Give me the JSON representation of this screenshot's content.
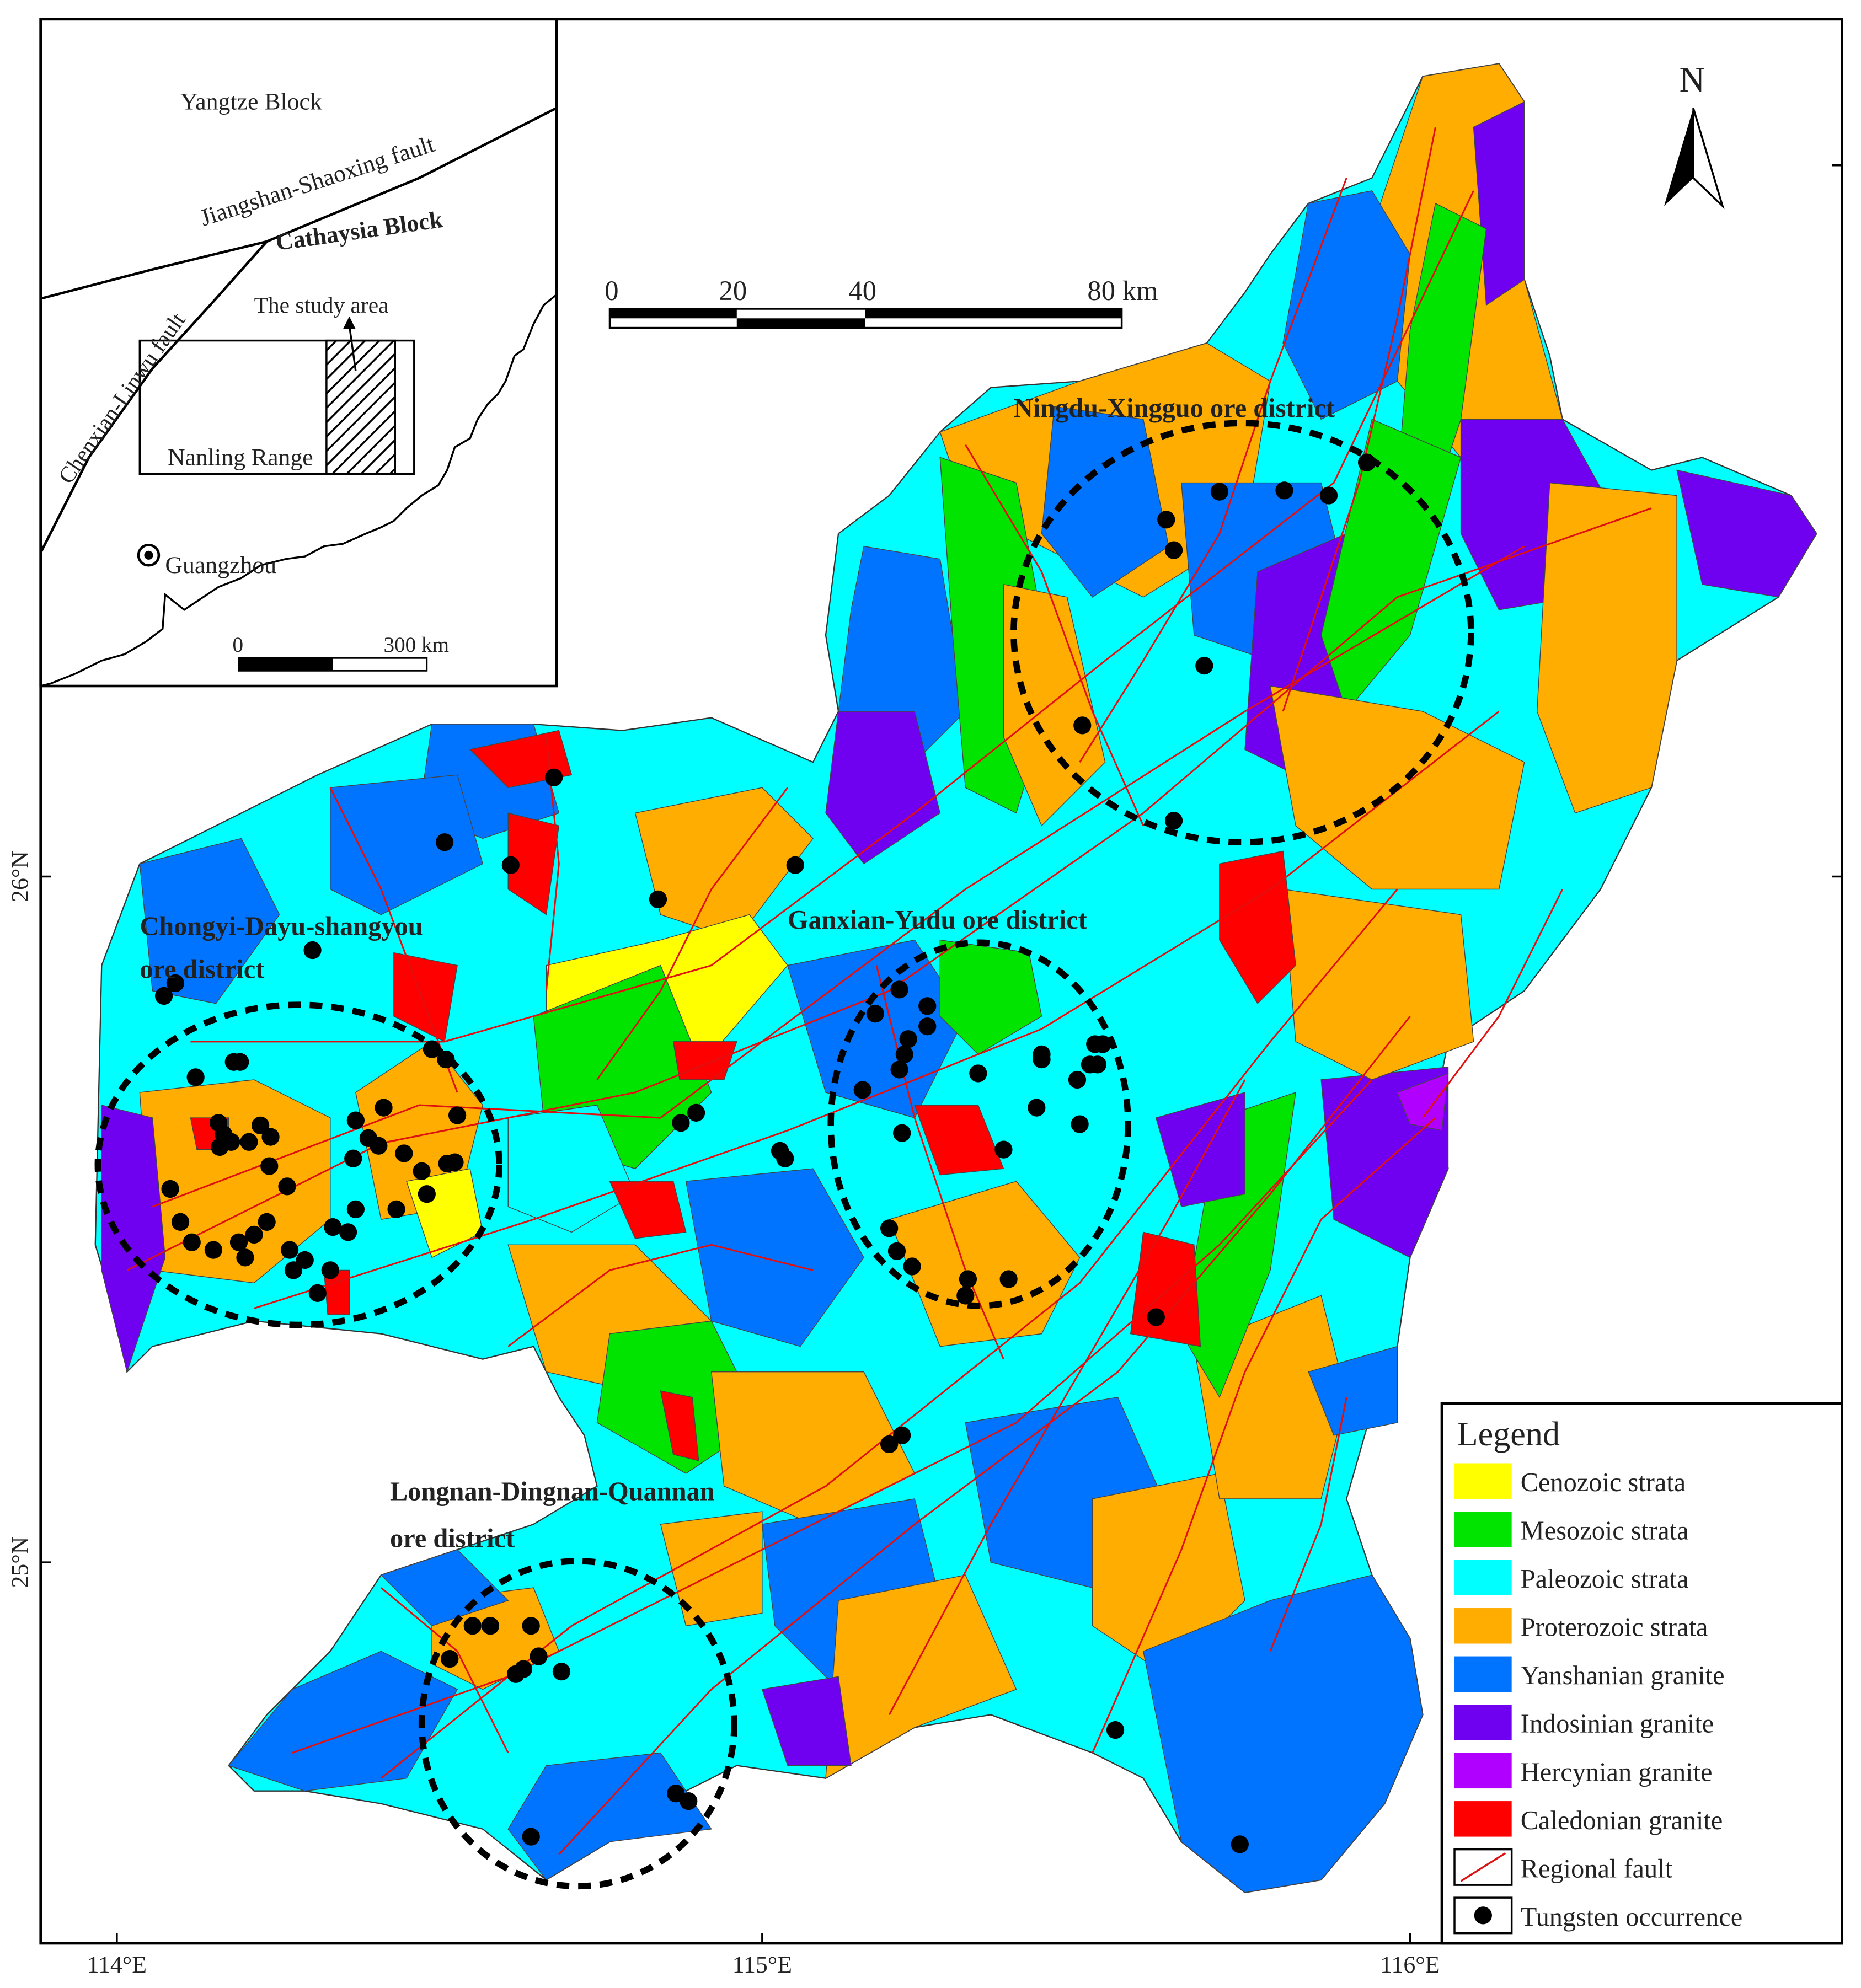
{
  "inset": {
    "labels": {
      "yangtze": "Yangtze Block",
      "js_fault": "Jiangshan-Shaoxing fault",
      "cathaysia": "Cathaysia Block",
      "study_area": "The study area",
      "cl_fault": "Chenxian-Linwu fault",
      "nanling": "Nanling Range",
      "guangzhou": "Guangzhou"
    },
    "scale": [
      "0",
      "300 km"
    ]
  },
  "north": "N",
  "scale_bar": [
    "0",
    "20",
    "40",
    "80 km"
  ],
  "longitudes": [
    "114°E",
    "115°E",
    "116°E"
  ],
  "latitudes": [
    "26°N",
    "25°N"
  ],
  "districts": [
    {
      "lines": [
        "Ningdu-Xingguo ore district"
      ]
    },
    {
      "lines": [
        "Ganxian-Yudu ore district"
      ]
    },
    {
      "lines": [
        "Chongyi-Dayu-shangyou",
        "ore district"
      ]
    },
    {
      "lines": [
        "Longnan-Dingnan-Quannan",
        "ore district"
      ]
    }
  ],
  "legend": {
    "title": "Legend",
    "units": [
      {
        "label": "Cenozoic strata",
        "color": "#ffff00"
      },
      {
        "label": "Mesozoic strata",
        "color": "#00e400"
      },
      {
        "label": "Paleozoic strata",
        "color": "#00ffff"
      },
      {
        "label": "Proterozoic strata",
        "color": "#ffad00"
      },
      {
        "label": "Yanshanian granite",
        "color": "#0074ff"
      },
      {
        "label": "Indosinian granite",
        "color": "#7000f0"
      },
      {
        "label": "Hercynian granite",
        "color": "#b000ff"
      },
      {
        "label": "Caledonian granite",
        "color": "#ff0000"
      }
    ],
    "fault": {
      "label": "Regional fault",
      "color": "#e01010"
    },
    "occurrence": {
      "label": "Tungsten occurrence",
      "color": "#000000"
    }
  }
}
